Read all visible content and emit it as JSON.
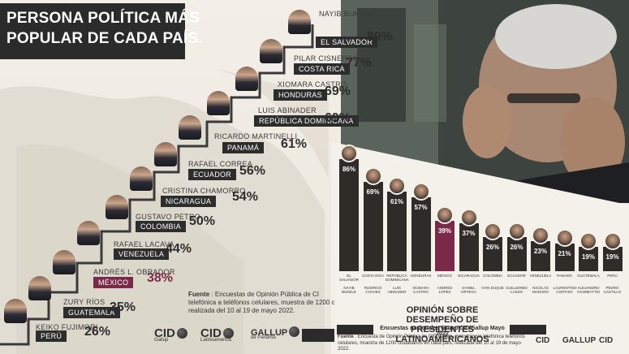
{
  "title": {
    "line1": "PERSONA POLÍTICA MÁS",
    "line2": "POPULAR DE CADA PAÍS."
  },
  "ranking": [
    {
      "name": "NAYIB BUKELE",
      "country": "EL SALVADOR",
      "pct": "89%"
    },
    {
      "name": "PILAR CISNEROS",
      "country": "COSTA RICA",
      "pct": "77%"
    },
    {
      "name": "XIOMARA CASTRO",
      "country": "HONDURAS",
      "pct": "69%"
    },
    {
      "name": "LUIS ABINADER",
      "country": "REPÚBLICA DOMINICANA",
      "pct": "69%"
    },
    {
      "name": "RICARDO MARTINELLI",
      "country": "PANAMÁ",
      "pct": "61%"
    },
    {
      "name": "RAFAEL CORREA",
      "country": "ECUADOR",
      "pct": "56%"
    },
    {
      "name": "CRISTINA CHAMORRO",
      "country": "NICARAGUA",
      "pct": "54%"
    },
    {
      "name": "GUSTAVO PETRO",
      "country": "COLOMBIA",
      "pct": "50%"
    },
    {
      "name": "RAFAEL LACAVA",
      "country": "VENEZUELA",
      "pct": "44%"
    },
    {
      "name": "ANDRÉS L. OBRADOR",
      "country": "MÉXICO",
      "pct": "38%",
      "highlight": true
    },
    {
      "name": "ZURY RÍOS",
      "country": "GUATEMALA",
      "pct": "35%"
    },
    {
      "name": "KEIKO FUJIMORI",
      "country": "PERÚ",
      "pct": "26%"
    }
  ],
  "footnote_left": {
    "label": "Fuente",
    "text": ": Encuestas de Opinión Pública de CI telefónica a teléfonos celulares, muestra de 1200 c realizada del 10 al 19 de mayo 2022."
  },
  "footnote_right": {
    "label": "Fuente",
    "text": ": Encuesta de Opinión Pública de CID Gallup, metodología telefónica teléfonos celulares, muestra de 1200 ciudadanos en cada país, realizada del 10 al 19 de mayo 2022."
  },
  "logos": {
    "cid": "CID",
    "cid_sub1": "Gallup",
    "cid_sub2": "Latinoamerica",
    "gallup": "GALLUP",
    "gallup_sub": "de Panamá"
  },
  "colors": {
    "dark": "#2e2b28",
    "mexico": "#7a2a48",
    "background": "#f0ece4"
  },
  "chart_data": {
    "type": "bar",
    "title_line1": "OPINIÓN SOBRE DESEMPEÑO DE",
    "title_line2": "PRESIDENTES LATINOAMERICANOS",
    "subtitle": "Encuestas nacionales Grupo CID/Gallup Mayo 2022",
    "categories": [
      "EL SALVADOR",
      "COSTA RICA",
      "REPÚBLICA DOMINICANA",
      "HONDURAS",
      "MÉXICO",
      "NICARAGUA",
      "COLOMBIA",
      "ECUADOR",
      "VENEZUELA",
      "PANAMÁ",
      "GUATEMALA",
      "PERÚ"
    ],
    "presidents": [
      "NAYIB BUKELE",
      "RODRIGO CHAVES",
      "LUIS ABINADER",
      "XIOMARA CASTRO",
      "ANDRÉS LÓPEZ",
      "DANIEL ORTEGA",
      "IVAN DUQUE",
      "GUILLERMO LASSO",
      "NICOLÁS MADURO",
      "LAURENTINO CORTIZO",
      "ALEJANDRO GIAMMATTEI",
      "PEDRO CASTILLO"
    ],
    "values": [
      86,
      69,
      61,
      57,
      39,
      37,
      26,
      26,
      23,
      21,
      19,
      19
    ],
    "labels": [
      "86%",
      "69%",
      "61%",
      "57%",
      "39%",
      "37%",
      "26%",
      "26%",
      "23%",
      "21%",
      "19%",
      "19%"
    ],
    "highlight_index": 4,
    "ylim": [
      0,
      100
    ]
  }
}
